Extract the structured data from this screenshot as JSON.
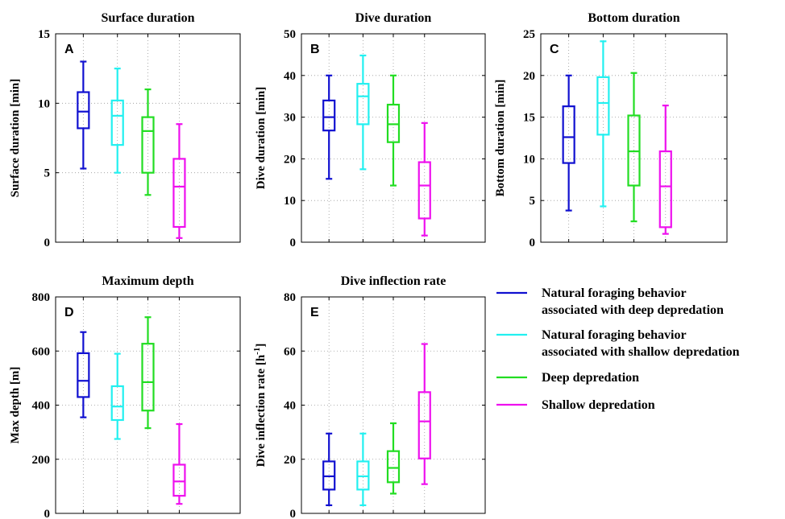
{
  "chart_data": [
    {
      "type": "box",
      "panel": "A",
      "title": "Surface duration",
      "ylabel": "Surface duration [min]",
      "ylim": [
        0,
        15
      ],
      "yticks": [
        0,
        5,
        10,
        15
      ],
      "grid": true,
      "series": [
        {
          "name": "Natural foraging behavior associated with deep depredation",
          "color": "#1010d0",
          "whisker_low": 5.3,
          "q1": 8.2,
          "median": 9.4,
          "q3": 10.8,
          "whisker_high": 13.0
        },
        {
          "name": "Natural foraging behavior associated with shallow depredation",
          "color": "#22f0f0",
          "whisker_low": 5.0,
          "q1": 7.0,
          "median": 9.1,
          "q3": 10.2,
          "whisker_high": 12.5
        },
        {
          "name": "Deep depredation",
          "color": "#22dd22",
          "whisker_low": 3.4,
          "q1": 5.0,
          "median": 8.0,
          "q3": 9.0,
          "whisker_high": 11.0
        },
        {
          "name": "Shallow depredation",
          "color": "#ee10ee",
          "whisker_low": 0.3,
          "q1": 1.1,
          "median": 4.0,
          "q3": 6.0,
          "whisker_high": 8.5
        }
      ]
    },
    {
      "type": "box",
      "panel": "B",
      "title": "Dive duration",
      "ylabel": "Dive duration [min]",
      "ylim": [
        0,
        50
      ],
      "yticks": [
        0,
        10,
        20,
        30,
        40,
        50
      ],
      "grid": true,
      "series": [
        {
          "name": "Natural foraging behavior associated with deep depredation",
          "color": "#1010d0",
          "whisker_low": 15.2,
          "q1": 26.8,
          "median": 30.0,
          "q3": 34.0,
          "whisker_high": 40.0
        },
        {
          "name": "Natural foraging behavior associated with shallow depredation",
          "color": "#22f0f0",
          "whisker_low": 17.5,
          "q1": 28.3,
          "median": 35.0,
          "q3": 38.0,
          "whisker_high": 44.8
        },
        {
          "name": "Deep depredation",
          "color": "#22dd22",
          "whisker_low": 13.6,
          "q1": 24.0,
          "median": 28.3,
          "q3": 33.0,
          "whisker_high": 40.0
        },
        {
          "name": "Shallow depredation",
          "color": "#ee10ee",
          "whisker_low": 1.6,
          "q1": 5.7,
          "median": 13.6,
          "q3": 19.2,
          "whisker_high": 28.6
        }
      ]
    },
    {
      "type": "box",
      "panel": "C",
      "title": "Bottom duration",
      "ylabel": "Bottom duration [min]",
      "ylim": [
        0,
        25
      ],
      "yticks": [
        0,
        5,
        10,
        15,
        20,
        25
      ],
      "grid": true,
      "series": [
        {
          "name": "Natural foraging behavior associated with deep depredation",
          "color": "#1010d0",
          "whisker_low": 3.8,
          "q1": 9.5,
          "median": 12.6,
          "q3": 16.3,
          "whisker_high": 20.0
        },
        {
          "name": "Natural foraging behavior associated with shallow depredation",
          "color": "#22f0f0",
          "whisker_low": 4.3,
          "q1": 12.9,
          "median": 16.7,
          "q3": 19.8,
          "whisker_high": 24.1
        },
        {
          "name": "Deep depredation",
          "color": "#22dd22",
          "whisker_low": 2.5,
          "q1": 6.8,
          "median": 10.9,
          "q3": 15.2,
          "whisker_high": 20.3
        },
        {
          "name": "Shallow depredation",
          "color": "#ee10ee",
          "whisker_low": 1.0,
          "q1": 1.8,
          "median": 6.7,
          "q3": 10.9,
          "whisker_high": 16.4
        }
      ]
    },
    {
      "type": "box",
      "panel": "D",
      "title": "Maximum depth",
      "ylabel": "Max depth [m]",
      "ylim": [
        0,
        800
      ],
      "yticks": [
        0,
        200,
        400,
        600,
        800
      ],
      "grid": true,
      "series": [
        {
          "name": "Natural foraging behavior associated with deep depredation",
          "color": "#1010d0",
          "whisker_low": 355,
          "q1": 430,
          "median": 490,
          "q3": 592,
          "whisker_high": 670
        },
        {
          "name": "Natural foraging behavior associated with shallow depredation",
          "color": "#22f0f0",
          "whisker_low": 275,
          "q1": 345,
          "median": 395,
          "q3": 470,
          "whisker_high": 590
        },
        {
          "name": "Deep depredation",
          "color": "#22dd22",
          "whisker_low": 315,
          "q1": 380,
          "median": 485,
          "q3": 627,
          "whisker_high": 725
        },
        {
          "name": "Shallow depredation",
          "color": "#ee10ee",
          "whisker_low": 35,
          "q1": 65,
          "median": 118,
          "q3": 180,
          "whisker_high": 330
        }
      ]
    },
    {
      "type": "box",
      "panel": "E",
      "title": "Dive inflection rate",
      "ylabel": "Dive inflection rate [h",
      "ylabel_sup": "-1",
      "ylabel_end": "]",
      "ylim": [
        0,
        80
      ],
      "yticks": [
        0,
        20,
        40,
        60,
        80
      ],
      "grid": true,
      "series": [
        {
          "name": "Natural foraging behavior associated with deep depredation",
          "color": "#1010d0",
          "whisker_low": 3.0,
          "q1": 8.8,
          "median": 13.7,
          "q3": 19.2,
          "whisker_high": 29.5
        },
        {
          "name": "Natural foraging behavior associated with shallow depredation",
          "color": "#22f0f0",
          "whisker_low": 3.0,
          "q1": 8.8,
          "median": 13.7,
          "q3": 19.2,
          "whisker_high": 29.5
        },
        {
          "name": "Deep depredation",
          "color": "#22dd22",
          "whisker_low": 7.3,
          "q1": 11.5,
          "median": 16.8,
          "q3": 23.0,
          "whisker_high": 33.3
        },
        {
          "name": "Shallow depredation",
          "color": "#ee10ee",
          "whisker_low": 10.8,
          "q1": 20.3,
          "median": 34.0,
          "q3": 44.8,
          "whisker_high": 62.6
        }
      ]
    }
  ],
  "legend": {
    "placement": "right of panel E",
    "entries": [
      {
        "lines": [
          "Natural foraging behavior",
          "associated with deep depredation"
        ],
        "color": "#1010d0"
      },
      {
        "lines": [
          "Natural foraging behavior",
          "associated with shallow depredation"
        ],
        "color": "#22f0f0"
      },
      {
        "lines": [
          "Deep depredation"
        ],
        "color": "#22dd22"
      },
      {
        "lines": [
          "Shallow depredation"
        ],
        "color": "#ee10ee"
      }
    ]
  }
}
